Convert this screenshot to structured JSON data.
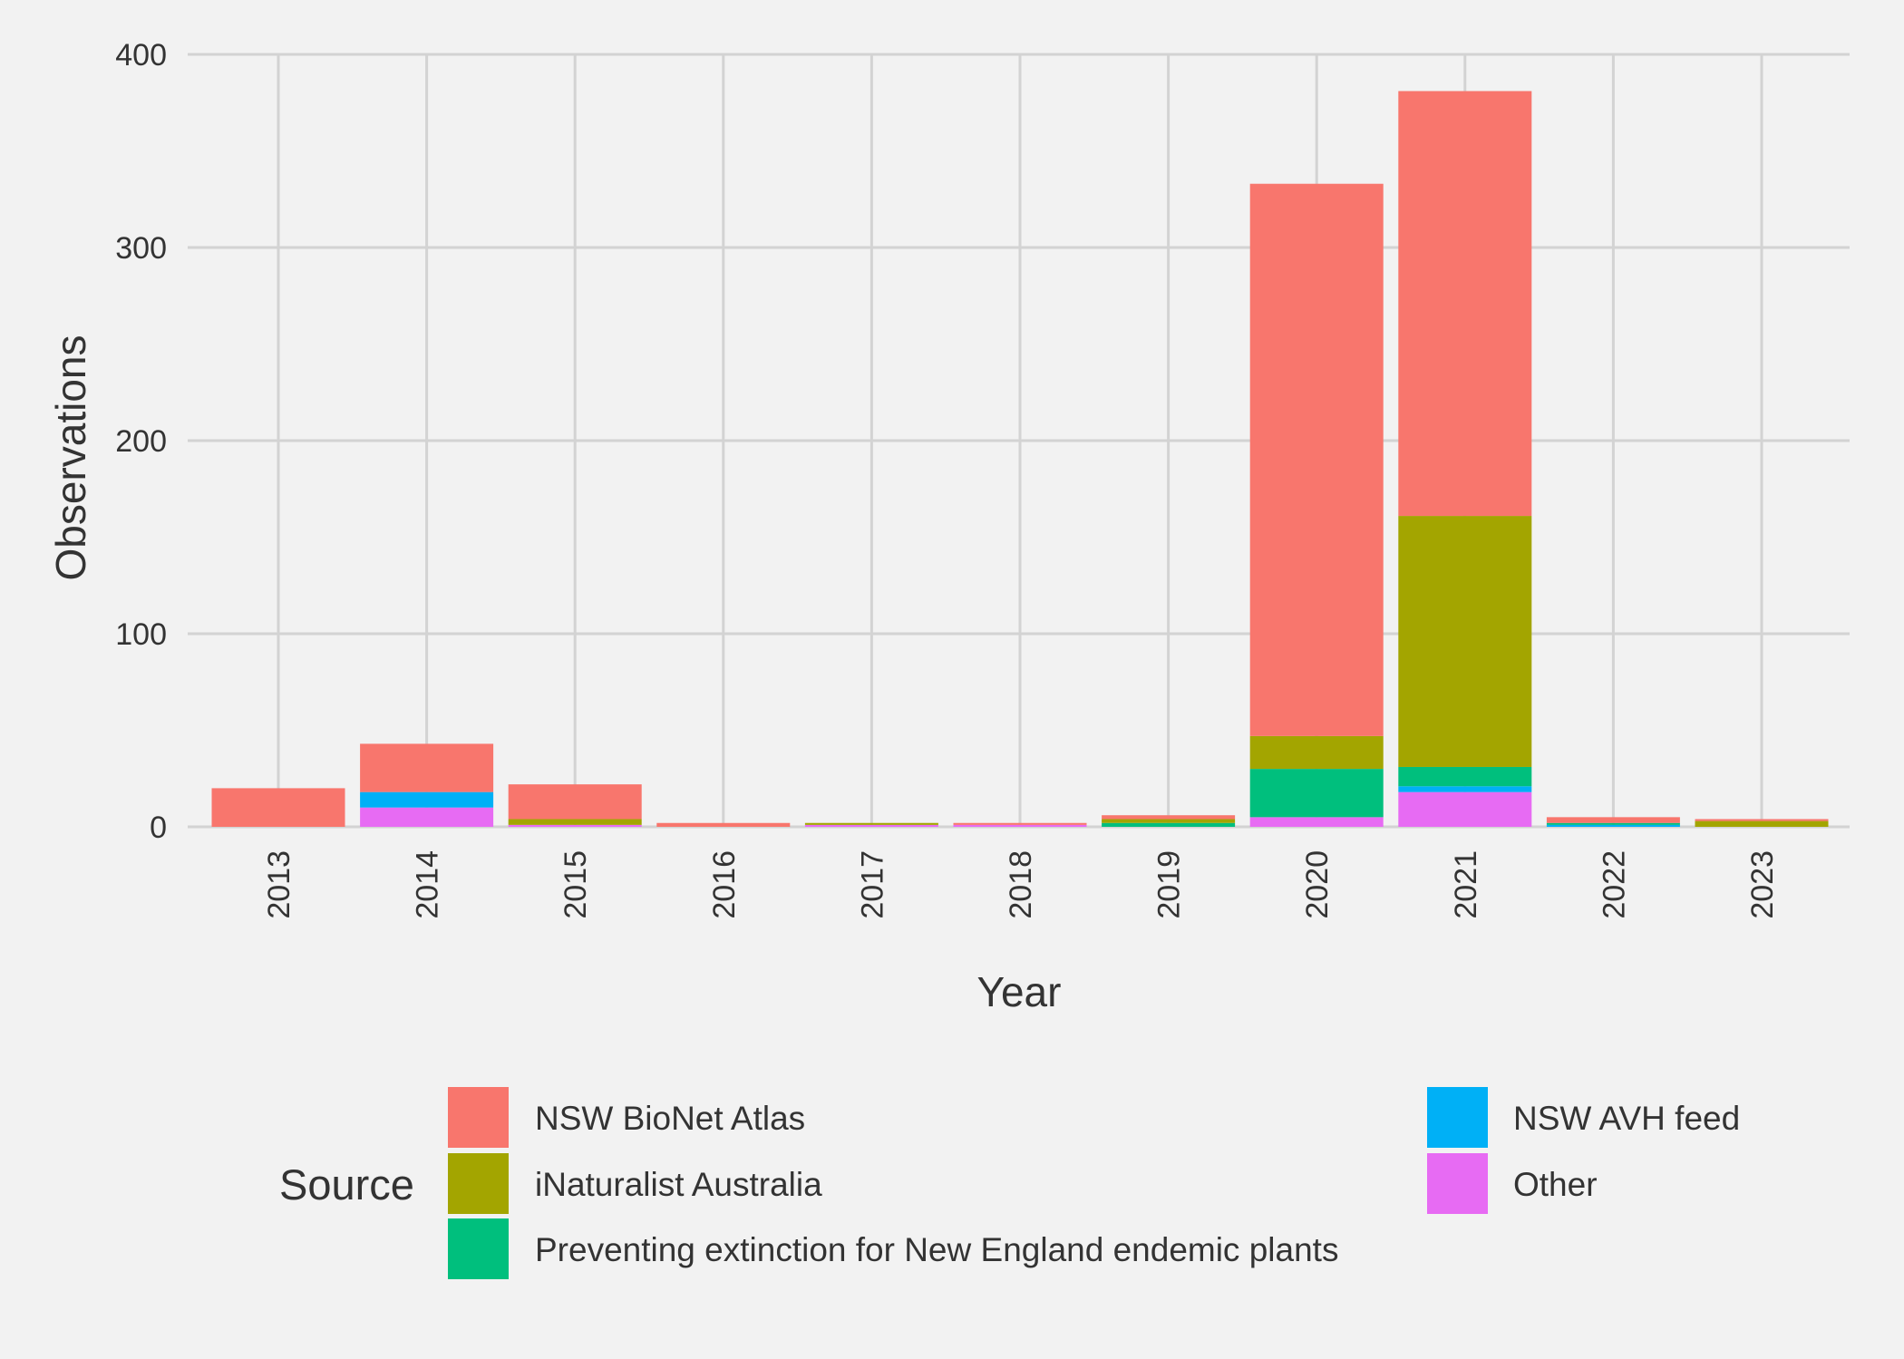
{
  "chart_data": {
    "type": "bar",
    "stacked": true,
    "xlabel": "Year",
    "ylabel": "Observations",
    "ylim": [
      0,
      400
    ],
    "yticks": [
      0,
      100,
      200,
      300,
      400
    ],
    "categories": [
      "2013",
      "2014",
      "2015",
      "2016",
      "2017",
      "2018",
      "2019",
      "2020",
      "2021",
      "2022",
      "2023"
    ],
    "series": [
      {
        "name": "Other",
        "color": "#e76bf3",
        "values": [
          0,
          10,
          1,
          0,
          1,
          1,
          0,
          5,
          18,
          0,
          0
        ]
      },
      {
        "name": "NSW AVH feed",
        "color": "#00b0f6",
        "values": [
          0,
          8,
          0,
          0,
          0,
          0,
          0,
          0,
          3,
          1,
          0
        ]
      },
      {
        "name": "Preventing extinction for New England endemic plants",
        "color": "#00bf7d",
        "values": [
          0,
          0,
          0,
          0,
          0,
          0,
          2,
          25,
          10,
          1,
          0
        ]
      },
      {
        "name": "iNaturalist Australia",
        "color": "#a3a500",
        "values": [
          0,
          0,
          3,
          0,
          1,
          0,
          2,
          17,
          130,
          0,
          3
        ]
      },
      {
        "name": "NSW BioNet Atlas",
        "color": "#f8766d",
        "values": [
          20,
          25,
          18,
          2,
          0,
          1,
          2,
          286,
          220,
          3,
          1
        ]
      }
    ],
    "legend": {
      "title": "Source",
      "position": "bottom",
      "order": [
        "NSW BioNet Atlas",
        "iNaturalist Australia",
        "Preventing extinction for New England endemic plants",
        "NSW AVH feed",
        "Other"
      ]
    },
    "grid": true,
    "background": "#f2f2f2",
    "grid_color": "#d3d3d3"
  }
}
